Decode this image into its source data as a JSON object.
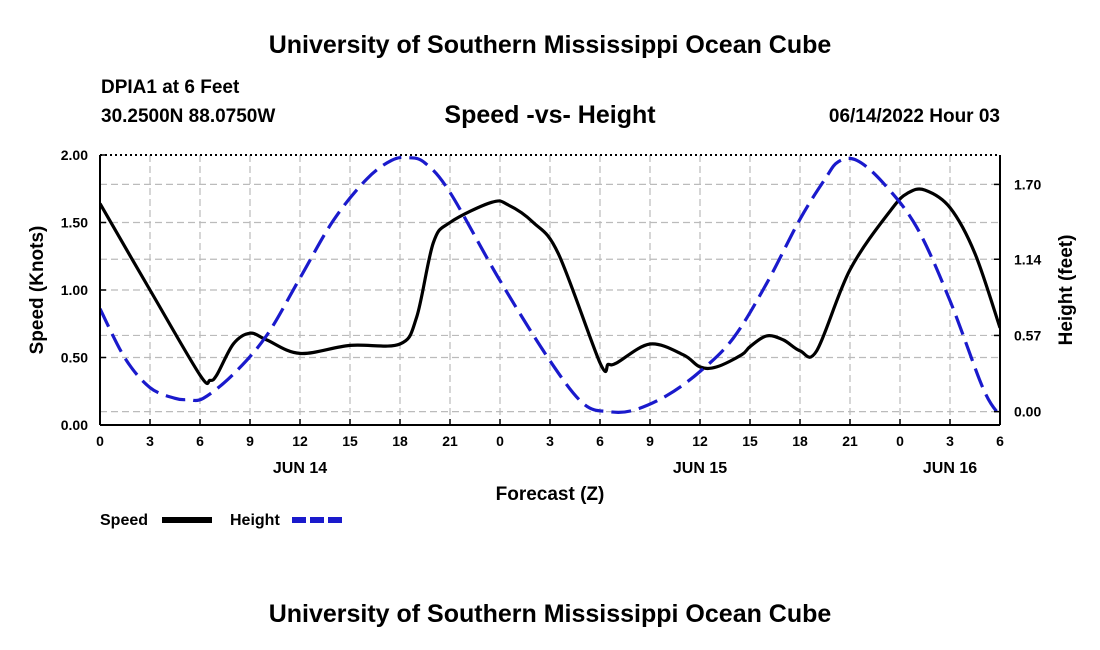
{
  "header": {
    "title": "University of Southern Mississippi Ocean Cube",
    "station": "DPIA1 at 6 Feet",
    "coords": "30.2500N  88.0750W",
    "subtitle": "Speed -vs- Height",
    "datetime": "06/14/2022 Hour 03"
  },
  "footer": {
    "title": "University of Southern Mississippi Ocean Cube"
  },
  "colors": {
    "speed": "#000000",
    "height": "#1a1acc",
    "grid": "#bbbbbb"
  },
  "chart_data": {
    "type": "line",
    "title": "Speed -vs- Height",
    "xlabel": "Forecast (Z)",
    "ylabel": "Speed (Knots)",
    "y2label": "Height (feet)",
    "xlim": [
      0,
      54
    ],
    "ylim": [
      0,
      2.0
    ],
    "y2lim": [
      -0.1,
      1.92
    ],
    "x_ticks": [
      0,
      3,
      6,
      9,
      12,
      15,
      18,
      21,
      24,
      27,
      30,
      33,
      36,
      39,
      42,
      45,
      48,
      51,
      54
    ],
    "x_tick_labels": [
      "0",
      "3",
      "6",
      "9",
      "12",
      "15",
      "18",
      "21",
      "0",
      "3",
      "6",
      "9",
      "12",
      "15",
      "18",
      "21",
      "0",
      "3",
      "6"
    ],
    "date_labels": [
      {
        "x": 12,
        "label": "JUN 14"
      },
      {
        "x": 36,
        "label": "JUN 15"
      },
      {
        "x": 51,
        "label": "JUN 16"
      }
    ],
    "y_ticks": [
      0,
      0.5,
      1.0,
      1.5,
      2.0
    ],
    "y_tick_labels": [
      "0.00",
      "0.50",
      "1.00",
      "1.50",
      "2.00"
    ],
    "y2_ticks": [
      0,
      0.57,
      1.14,
      1.7
    ],
    "y2_tick_labels": [
      "0.00",
      "0.57",
      "1.14",
      "1.70"
    ],
    "grid": true,
    "legend_position": "bottom-left",
    "series": [
      {
        "name": "Speed",
        "axis": "left",
        "style": "solid",
        "x": [
          0,
          3,
          6,
          6.6,
          7,
          8,
          9,
          10,
          12,
          15,
          18,
          19,
          20,
          21,
          23.5,
          24.5,
          26,
          27.5,
          30,
          30.5,
          31,
          33,
          35,
          36,
          37,
          38.5,
          39,
          40,
          41,
          42,
          43,
          45,
          47.5,
          48.5,
          49.5,
          51,
          52.5,
          54
        ],
        "values": [
          1.64,
          1.0,
          0.37,
          0.33,
          0.37,
          0.6,
          0.68,
          0.63,
          0.53,
          0.59,
          0.6,
          0.8,
          1.35,
          1.5,
          1.65,
          1.63,
          1.5,
          1.27,
          0.46,
          0.45,
          0.46,
          0.6,
          0.52,
          0.43,
          0.43,
          0.52,
          0.58,
          0.66,
          0.63,
          0.55,
          0.55,
          1.15,
          1.6,
          1.72,
          1.74,
          1.61,
          1.27,
          0.72
        ]
      },
      {
        "name": "Height",
        "axis": "right",
        "style": "dashed",
        "x": [
          0,
          1.5,
          3,
          4.5,
          5.3,
          6.2,
          8,
          10,
          12,
          14,
          16,
          17.5,
          18.5,
          19.5,
          21,
          24,
          27,
          29,
          30.5,
          32,
          34,
          36,
          38,
          40,
          42,
          43.5,
          44.3,
          45.4,
          47,
          49,
          51,
          53,
          54
        ],
        "values": [
          0.77,
          0.4,
          0.18,
          0.1,
          0.09,
          0.1,
          0.28,
          0.57,
          1.0,
          1.43,
          1.74,
          1.88,
          1.9,
          1.86,
          1.64,
          0.98,
          0.38,
          0.06,
          0.0,
          0.01,
          0.12,
          0.3,
          0.55,
          0.96,
          1.44,
          1.74,
          1.87,
          1.88,
          1.71,
          1.38,
          0.83,
          0.17,
          -0.03
        ]
      }
    ]
  }
}
